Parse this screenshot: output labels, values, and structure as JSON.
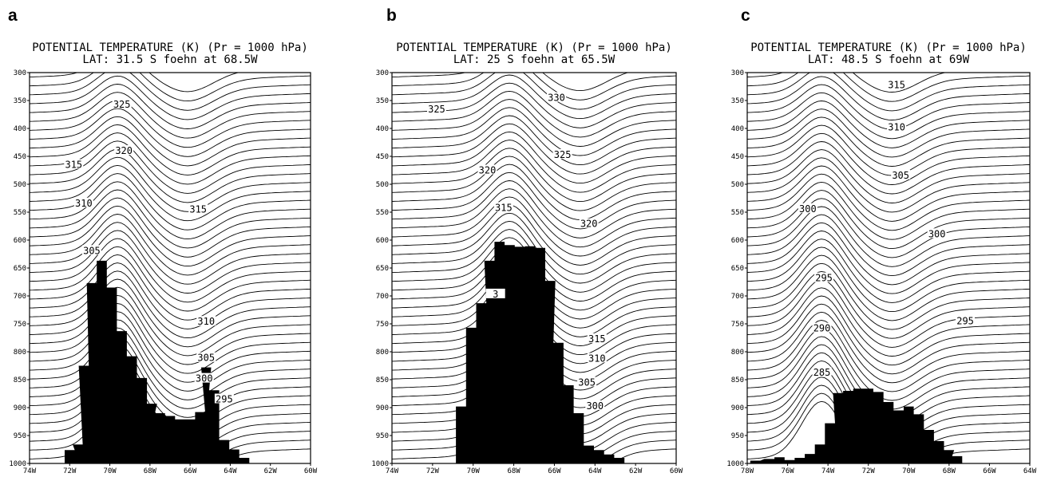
{
  "figure": {
    "panel_letters": [
      "a",
      "b",
      "c"
    ]
  },
  "chart_data": [
    {
      "type": "contour",
      "panel": "a",
      "title": "POTENTIAL TEMPERATURE (K)  (Pr = 1000 hPa)",
      "subtitle": "LAT: 31.5 S    foehn at 68.5W",
      "x_range": [
        -74,
        -60
      ],
      "y_range_hpa": [
        300,
        1000
      ],
      "x_ticks": [
        -74,
        -72,
        -70,
        -68,
        -66,
        -64,
        -62,
        -60
      ],
      "x_tick_labels": [
        "74W",
        "72W",
        "70W",
        "68W",
        "66W",
        "64W",
        "62W",
        "60W"
      ],
      "y_ticks": [
        300,
        350,
        400,
        450,
        500,
        550,
        600,
        650,
        700,
        750,
        800,
        850,
        900,
        950,
        1000
      ],
      "y_tick_labels": [
        "300",
        "350",
        "400",
        "450",
        "500",
        "550",
        "600",
        "650",
        "700",
        "750",
        "800",
        "850",
        "900",
        "950",
        "1000"
      ],
      "contour_levels": [
        280,
        340
      ],
      "contour_interval": 1,
      "contour_labels": [
        "325",
        "320",
        "315",
        "315",
        "310",
        "305",
        "310",
        "305",
        "300",
        "295"
      ],
      "contour_label_positions": [
        [
          -69.4,
          357
        ],
        [
          -69.3,
          440
        ],
        [
          -71.8,
          465
        ],
        [
          -65.6,
          545
        ],
        [
          -71.3,
          534
        ],
        [
          -70.9,
          619
        ],
        [
          -65.2,
          746
        ],
        [
          -65.2,
          811
        ],
        [
          -65.3,
          848
        ],
        [
          -64.3,
          885
        ]
      ],
      "terrain_hpa": [
        {
          "x": -72.0,
          "p": 976
        },
        {
          "x": -71.6,
          "p": 966
        },
        {
          "x": -71.3,
          "p": 825
        },
        {
          "x": -70.9,
          "p": 677
        },
        {
          "x": -70.4,
          "p": 637
        },
        {
          "x": -69.9,
          "p": 685
        },
        {
          "x": -69.4,
          "p": 763
        },
        {
          "x": -68.9,
          "p": 808
        },
        {
          "x": -68.4,
          "p": 847
        },
        {
          "x": -67.9,
          "p": 893
        },
        {
          "x": -67.5,
          "p": 910
        },
        {
          "x": -67.0,
          "p": 915
        },
        {
          "x": -66.5,
          "p": 921
        },
        {
          "x": -66.0,
          "p": 921
        },
        {
          "x": -65.5,
          "p": 908
        },
        {
          "x": -65.2,
          "p": 828
        },
        {
          "x": -64.8,
          "p": 869
        },
        {
          "x": -64.3,
          "p": 958
        },
        {
          "x": -63.8,
          "p": 975
        },
        {
          "x": -63.3,
          "p": 990
        }
      ],
      "contour_field": {
        "p": [
          300,
          1000
        ],
        "x": [
          -74,
          -60
        ],
        "theta_top": 331,
        "theta_bottom": 289,
        "dip_center": -69.3
      }
    },
    {
      "type": "contour",
      "panel": "b",
      "title": "POTENTIAL TEMPERATURE (K)  (Pr = 1000 hPa)",
      "subtitle": "LAT: 25 S    foehn at 65.5W",
      "x_range": [
        -74,
        -60
      ],
      "y_range_hpa": [
        300,
        1000
      ],
      "x_ticks": [
        -74,
        -72,
        -70,
        -68,
        -66,
        -64,
        -62,
        -60
      ],
      "x_tick_labels": [
        "74W",
        "72W",
        "70W",
        "68W",
        "66W",
        "64W",
        "62W",
        "60W"
      ],
      "y_ticks": [
        300,
        350,
        400,
        450,
        500,
        550,
        600,
        650,
        700,
        750,
        800,
        850,
        900,
        950,
        1000
      ],
      "y_tick_labels": [
        "300",
        "350",
        "400",
        "450",
        "500",
        "550",
        "600",
        "650",
        "700",
        "750",
        "800",
        "850",
        "900",
        "950",
        "1000"
      ],
      "contour_levels": [
        280,
        340
      ],
      "contour_interval": 1,
      "contour_labels": [
        "330",
        "325",
        "325",
        "320",
        "315",
        "320",
        "315",
        "310",
        "305",
        "300",
        "3"
      ],
      "contour_label_positions": [
        [
          -65.9,
          345
        ],
        [
          -71.8,
          366
        ],
        [
          -65.6,
          447
        ],
        [
          -69.3,
          475
        ],
        [
          -68.5,
          542
        ],
        [
          -64.3,
          571
        ],
        [
          -63.9,
          777
        ],
        [
          -63.9,
          812
        ],
        [
          -64.4,
          855
        ],
        [
          -64.0,
          897
        ],
        [
          -68.9,
          697
        ]
      ],
      "terrain_hpa": [
        {
          "x": -70.6,
          "p": 898
        },
        {
          "x": -70.1,
          "p": 757
        },
        {
          "x": -69.6,
          "p": 713
        },
        {
          "x": -69.2,
          "p": 637
        },
        {
          "x": -68.7,
          "p": 603
        },
        {
          "x": -68.2,
          "p": 609
        },
        {
          "x": -67.7,
          "p": 612
        },
        {
          "x": -67.2,
          "p": 611
        },
        {
          "x": -66.7,
          "p": 614
        },
        {
          "x": -66.2,
          "p": 673
        },
        {
          "x": -65.8,
          "p": 784
        },
        {
          "x": -65.3,
          "p": 860
        },
        {
          "x": -64.8,
          "p": 910
        },
        {
          "x": -64.3,
          "p": 968
        },
        {
          "x": -63.8,
          "p": 976
        },
        {
          "x": -63.3,
          "p": 984
        },
        {
          "x": -62.8,
          "p": 990
        }
      ],
      "contour_field": {
        "p": [
          300,
          1000
        ],
        "x": [
          -74,
          -60
        ],
        "theta_top": 333,
        "theta_bottom": 290,
        "dip_center": -67.9
      }
    },
    {
      "type": "contour",
      "panel": "c",
      "title": "POTENTIAL TEMPERATURE (K)  (Pr = 1000 hPa)",
      "subtitle": "LAT: 48.5 S    foehn at 69W",
      "x_range": [
        -78,
        -64
      ],
      "y_range_hpa": [
        300,
        1000
      ],
      "x_ticks": [
        -78,
        -76,
        -74,
        -72,
        -70,
        -68,
        -66,
        -64
      ],
      "x_tick_labels": [
        "78W",
        "76W",
        "74W",
        "72W",
        "70W",
        "68W",
        "66W",
        "64W"
      ],
      "y_ticks": [
        300,
        350,
        400,
        450,
        500,
        550,
        600,
        650,
        700,
        750,
        800,
        850,
        900,
        950,
        1000
      ],
      "y_tick_labels": [
        "300",
        "350",
        "400",
        "450",
        "500",
        "550",
        "600",
        "650",
        "700",
        "750",
        "800",
        "850",
        "900",
        "950",
        "1000"
      ],
      "contour_levels": [
        280,
        340
      ],
      "contour_interval": 1,
      "contour_labels": [
        "315",
        "310",
        "305",
        "300",
        "300",
        "295",
        "295",
        "290",
        "285"
      ],
      "contour_label_positions": [
        [
          -70.6,
          322
        ],
        [
          -70.6,
          398
        ],
        [
          -70.4,
          484
        ],
        [
          -75.0,
          544
        ],
        [
          -68.6,
          589
        ],
        [
          -74.2,
          668
        ],
        [
          -67.2,
          745
        ],
        [
          -74.3,
          758
        ],
        [
          -74.3,
          837
        ]
      ],
      "terrain_hpa": [
        {
          "x": -77.6,
          "p": 995
        },
        {
          "x": -76.9,
          "p": 992
        },
        {
          "x": -76.4,
          "p": 989
        },
        {
          "x": -75.9,
          "p": 994
        },
        {
          "x": -75.4,
          "p": 990
        },
        {
          "x": -74.9,
          "p": 983
        },
        {
          "x": -74.4,
          "p": 966
        },
        {
          "x": -73.9,
          "p": 928
        },
        {
          "x": -73.5,
          "p": 874
        },
        {
          "x": -73.0,
          "p": 870
        },
        {
          "x": -72.5,
          "p": 866
        },
        {
          "x": -72.0,
          "p": 866
        },
        {
          "x": -71.5,
          "p": 872
        },
        {
          "x": -71.0,
          "p": 890
        },
        {
          "x": -70.5,
          "p": 905
        },
        {
          "x": -70.0,
          "p": 898
        },
        {
          "x": -69.5,
          "p": 912
        },
        {
          "x": -69.0,
          "p": 940
        },
        {
          "x": -68.5,
          "p": 960
        },
        {
          "x": -68.0,
          "p": 976
        },
        {
          "x": -67.6,
          "p": 987
        }
      ],
      "contour_field": {
        "p": [
          300,
          1000
        ],
        "x": [
          -78,
          -64
        ],
        "theta_top": 318,
        "theta_bottom": 281,
        "dip_center": -74.0
      }
    }
  ]
}
